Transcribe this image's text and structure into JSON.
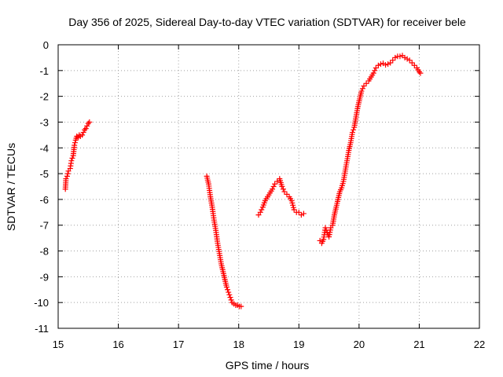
{
  "chart_data": {
    "type": "scatter",
    "title": "Day 356 of 2025, Sidereal Day-to-day VTEC variation (SDTVAR) for receiver bele",
    "xlabel": "GPS time / hours",
    "ylabel": "SDTVAR / TECUs",
    "xlim": [
      15,
      22
    ],
    "ylim": [
      -11,
      0
    ],
    "xticks": [
      "15",
      "16",
      "17",
      "18",
      "19",
      "20",
      "21",
      "22"
    ],
    "yticks": [
      "0",
      "-1",
      "-2",
      "-3",
      "-4",
      "-5",
      "-6",
      "-7",
      "-8",
      "-9",
      "-10",
      "-11"
    ],
    "grid": true,
    "marker": "+",
    "series": [
      {
        "name": "SDTVAR",
        "color": "#ff0000",
        "segments": [
          {
            "x": [
              15.12,
              15.13,
              15.15,
              15.17,
              15.2,
              15.22,
              15.25,
              15.27,
              15.29,
              15.31,
              15.33,
              15.35,
              15.37,
              15.4,
              15.42,
              15.44,
              15.46,
              15.48,
              15.5,
              15.52
            ],
            "y": [
              -5.6,
              -5.2,
              -5.1,
              -4.9,
              -4.8,
              -4.5,
              -4.3,
              -3.9,
              -3.7,
              -3.55,
              -3.6,
              -3.5,
              -3.55,
              -3.5,
              -3.4,
              -3.3,
              -3.25,
              -3.15,
              -3.05,
              -3.0
            ]
          },
          {
            "x": [
              17.47,
              17.5,
              17.53,
              17.56,
              17.59,
              17.62,
              17.65,
              17.68,
              17.71,
              17.74,
              17.77,
              17.8,
              17.83,
              17.86,
              17.89,
              17.92,
              17.95,
              17.98,
              18.01,
              18.04
            ],
            "y": [
              -5.1,
              -5.4,
              -5.9,
              -6.3,
              -6.8,
              -7.2,
              -7.7,
              -8.1,
              -8.5,
              -8.8,
              -9.1,
              -9.4,
              -9.6,
              -9.8,
              -10.0,
              -10.05,
              -10.1,
              -10.1,
              -10.15,
              -10.15
            ]
          },
          {
            "x": [
              18.33,
              18.36,
              18.4,
              18.44,
              18.48,
              18.52,
              18.56,
              18.6,
              18.64,
              18.68,
              18.72,
              18.76,
              18.8,
              18.84,
              18.88,
              18.92,
              18.96,
              19.0,
              19.04,
              19.08
            ],
            "y": [
              -6.6,
              -6.5,
              -6.3,
              -6.05,
              -5.9,
              -5.75,
              -5.6,
              -5.4,
              -5.3,
              -5.2,
              -5.5,
              -5.7,
              -5.8,
              -5.9,
              -6.05,
              -6.4,
              -6.5,
              -6.5,
              -6.6,
              -6.55
            ]
          },
          {
            "x": [
              19.35,
              19.38,
              19.41,
              19.44,
              19.47,
              19.5,
              19.53,
              19.56,
              19.59,
              19.62,
              19.65,
              19.68,
              19.71,
              19.74,
              19.77,
              19.8,
              19.83,
              19.86,
              19.89,
              19.92,
              19.95,
              19.98,
              20.01,
              20.04,
              20.08,
              20.12,
              20.16,
              20.2,
              20.24,
              20.28,
              20.32,
              20.36,
              20.4,
              20.44,
              20.48,
              20.52,
              20.56,
              20.6,
              20.64,
              20.68,
              20.72,
              20.76,
              20.8,
              20.84,
              20.88,
              20.92,
              20.96,
              21.0,
              21.02
            ],
            "y": [
              -7.6,
              -7.7,
              -7.55,
              -7.1,
              -7.3,
              -7.45,
              -7.1,
              -7.0,
              -6.6,
              -6.3,
              -6.0,
              -5.7,
              -5.55,
              -5.3,
              -4.9,
              -4.5,
              -4.1,
              -3.8,
              -3.4,
              -3.2,
              -2.8,
              -2.4,
              -2.1,
              -1.8,
              -1.6,
              -1.5,
              -1.4,
              -1.25,
              -1.1,
              -0.9,
              -0.8,
              -0.75,
              -0.72,
              -0.78,
              -0.75,
              -0.7,
              -0.6,
              -0.5,
              -0.45,
              -0.45,
              -0.42,
              -0.5,
              -0.55,
              -0.6,
              -0.7,
              -0.8,
              -0.9,
              -1.05,
              -1.1
            ]
          }
        ]
      }
    ]
  }
}
